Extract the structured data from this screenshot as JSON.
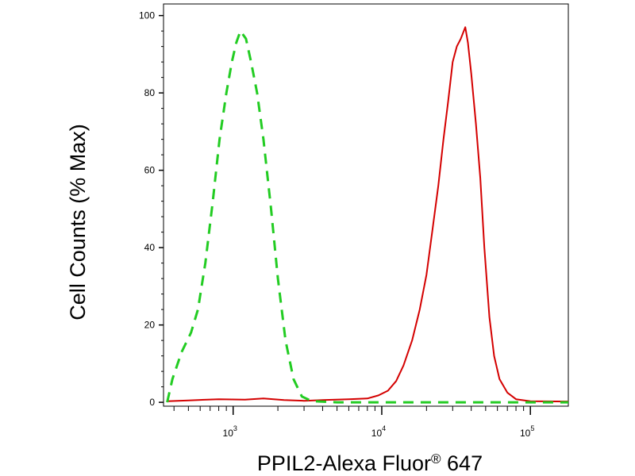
{
  "chart_data": {
    "type": "line",
    "title": "",
    "xlabel": "PPIL2-Alexa Fluor",
    "xlabel_sup": "®",
    "xlabel_suffix": " 647",
    "ylabel": "Cell Counts (% Max)",
    "x_scale": "log",
    "xlim": [
      340,
      180000
    ],
    "ylim": [
      -1,
      103
    ],
    "y_ticks": [
      0,
      20,
      40,
      60,
      80,
      100
    ],
    "y_tick_labels": [
      "0",
      "20",
      "40",
      "60",
      "80",
      "100"
    ],
    "x_ticks": [
      1000,
      10000,
      100000
    ],
    "x_tick_labels": [
      {
        "base": "10",
        "exp": "3"
      },
      {
        "base": "10",
        "exp": "4"
      },
      {
        "base": "10",
        "exp": "5"
      }
    ],
    "grid": false,
    "legend": "none",
    "series": [
      {
        "color": "#d40000",
        "style": "solid",
        "points": [
          [
            360,
            0.3
          ],
          [
            500,
            0.5
          ],
          [
            800,
            0.8
          ],
          [
            1200,
            0.7
          ],
          [
            1600,
            1.0
          ],
          [
            2200,
            0.6
          ],
          [
            3000,
            0.4
          ],
          [
            4000,
            0.6
          ],
          [
            6000,
            0.8
          ],
          [
            8000,
            1.0
          ],
          [
            9500,
            1.8
          ],
          [
            11000,
            3.0
          ],
          [
            12500,
            5.5
          ],
          [
            14000,
            9.5
          ],
          [
            16000,
            16
          ],
          [
            18000,
            24
          ],
          [
            20000,
            33
          ],
          [
            22000,
            45
          ],
          [
            24000,
            56
          ],
          [
            26000,
            68
          ],
          [
            28000,
            78
          ],
          [
            30000,
            88
          ],
          [
            32000,
            92
          ],
          [
            34000,
            94
          ],
          [
            36500,
            97
          ],
          [
            38000,
            93
          ],
          [
            40000,
            85
          ],
          [
            43000,
            72
          ],
          [
            46000,
            58
          ],
          [
            49000,
            40
          ],
          [
            53000,
            22
          ],
          [
            57000,
            12
          ],
          [
            62000,
            6
          ],
          [
            70000,
            2.5
          ],
          [
            80000,
            0.8
          ],
          [
            100000,
            0.3
          ],
          [
            180000,
            0.2
          ]
        ]
      },
      {
        "color": "#22cc22",
        "style": "dashed",
        "points": [
          [
            360,
            0
          ],
          [
            390,
            6
          ],
          [
            450,
            13
          ],
          [
            520,
            18
          ],
          [
            580,
            24
          ],
          [
            650,
            36
          ],
          [
            730,
            52
          ],
          [
            810,
            68
          ],
          [
            900,
            80
          ],
          [
            980,
            88
          ],
          [
            1050,
            93
          ],
          [
            1120,
            96
          ],
          [
            1220,
            94
          ],
          [
            1320,
            88
          ],
          [
            1450,
            80
          ],
          [
            1600,
            68
          ],
          [
            1800,
            50
          ],
          [
            2000,
            32
          ],
          [
            2250,
            16
          ],
          [
            2550,
            6
          ],
          [
            2900,
            1.5
          ],
          [
            3400,
            0.3
          ],
          [
            5000,
            0
          ],
          [
            10000,
            0
          ],
          [
            30000,
            0
          ],
          [
            60000,
            0
          ],
          [
            180000,
            0
          ]
        ]
      }
    ]
  }
}
